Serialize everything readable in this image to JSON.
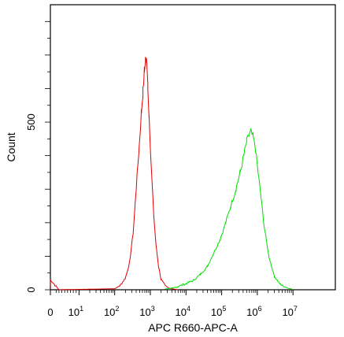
{
  "chart_data": {
    "type": "line",
    "title": "",
    "xlabel": "APC R660-APC-A",
    "ylabel": "Count",
    "x_scale": "biexponential",
    "xlim": [
      -30,
      10000000
    ],
    "ylim": [
      0,
      850
    ],
    "grid": false,
    "legend": "none",
    "x_ticks": [
      {
        "value": 0,
        "label": "0"
      },
      {
        "value": 10,
        "label": "10",
        "sup": "1"
      },
      {
        "value": 100,
        "label": "10",
        "sup": "2"
      },
      {
        "value": 1000,
        "label": "10",
        "sup": "3"
      },
      {
        "value": 10000,
        "label": "10",
        "sup": "4"
      },
      {
        "value": 100000,
        "label": "10",
        "sup": "5"
      },
      {
        "value": 1000000,
        "label": "10",
        "sup": "6"
      },
      {
        "value": 10000000,
        "label": "10",
        "sup": "7"
      }
    ],
    "y_ticks": [
      {
        "value": 0,
        "label": "0"
      },
      {
        "value": 500,
        "label": "500"
      }
    ],
    "series": [
      {
        "color": "#e00000",
        "x": [
          -2,
          0,
          3,
          100,
          140,
          200,
          260,
          330,
          400,
          480,
          560,
          620,
          680,
          730,
          780,
          850,
          920,
          1000,
          1100,
          1250,
          1450,
          1700,
          2000,
          2600,
          3300,
          4500,
          6000
        ],
        "y": [
          0,
          30,
          0,
          3,
          12,
          35,
          80,
          170,
          300,
          420,
          530,
          590,
          650,
          690,
          680,
          610,
          520,
          430,
          330,
          220,
          130,
          70,
          30,
          12,
          5,
          2,
          0
        ]
      },
      {
        "color": "#00dd00",
        "x": [
          2500,
          4000,
          6000,
          10000,
          16000,
          25000,
          40000,
          60000,
          90000,
          130000,
          180000,
          250000,
          330000,
          420000,
          500000,
          580000,
          660000,
          760000,
          880000,
          1000000,
          1250000,
          1600000,
          2100000,
          3000000,
          4500000,
          7000000,
          10000000
        ],
        "y": [
          2,
          5,
          10,
          18,
          28,
          45,
          70,
          110,
          150,
          200,
          250,
          300,
          350,
          400,
          440,
          460,
          470,
          455,
          420,
          370,
          280,
          180,
          100,
          40,
          15,
          5,
          1
        ]
      }
    ]
  }
}
